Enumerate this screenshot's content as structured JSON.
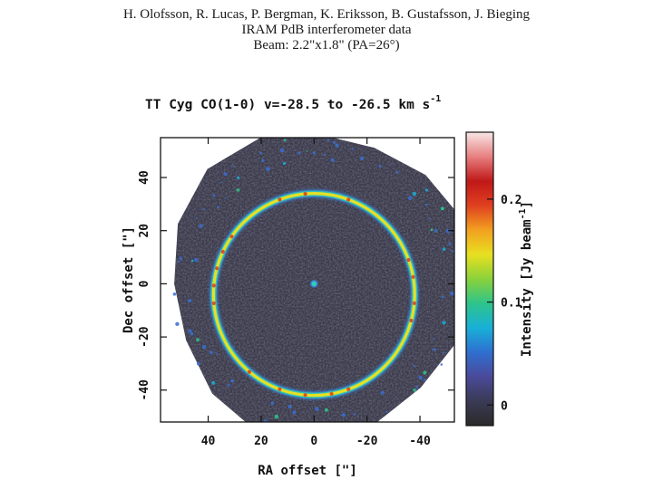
{
  "credits": {
    "authors": "H. Olofsson, R. Lucas, P. Bergman, K. Eriksson, B. Gustafsson, J. Bieging",
    "instrument": "IRAM PdB interferometer data",
    "beam": "Beam: 2.2\"x1.8\" (PA=26°)"
  },
  "plot": {
    "title": "TT Cyg  CO(1-0)  v=-28.5 to -26.5 km s",
    "title_sup": "-1",
    "xlabel": "RA offset  [\"]",
    "ylabel": "Dec offset  [\"]",
    "colorbar_label": "Intensity [Jy beam",
    "colorbar_label_sup": "-1",
    "colorbar_label_end": "]"
  },
  "chart_data": {
    "type": "heatmap",
    "title": "TT Cyg  CO(1-0)  v=-28.5 to -26.5 km s^-1",
    "xlabel": "RA offset  [\"]",
    "ylabel": "Dec offset  [\"]",
    "xlim": [
      58,
      -53
    ],
    "ylim": [
      -52,
      55
    ],
    "x_ticks": [
      40,
      20,
      0,
      -20,
      -40
    ],
    "y_ticks": [
      -40,
      -20,
      0,
      20,
      40
    ],
    "colorbar": {
      "label": "Intensity [Jy beam^-1]",
      "ticks": [
        0,
        0.1,
        0.2
      ],
      "range": [
        -0.02,
        0.265
      ],
      "colors": [
        "#2a2a2a",
        "#3a3a55",
        "#4a4a9a",
        "#2f6fd0",
        "#18b0d8",
        "#2ec48a",
        "#8ad23a",
        "#e8e020",
        "#f2a020",
        "#e04020",
        "#c01818",
        "#e88080",
        "#f8e6e6"
      ]
    },
    "features": {
      "ring": {
        "center": [
          0,
          -4
        ],
        "radius": 38,
        "intensity": 0.2
      },
      "central_source": {
        "position": [
          0,
          0
        ]
      },
      "map_outline_radius": 57
    }
  }
}
